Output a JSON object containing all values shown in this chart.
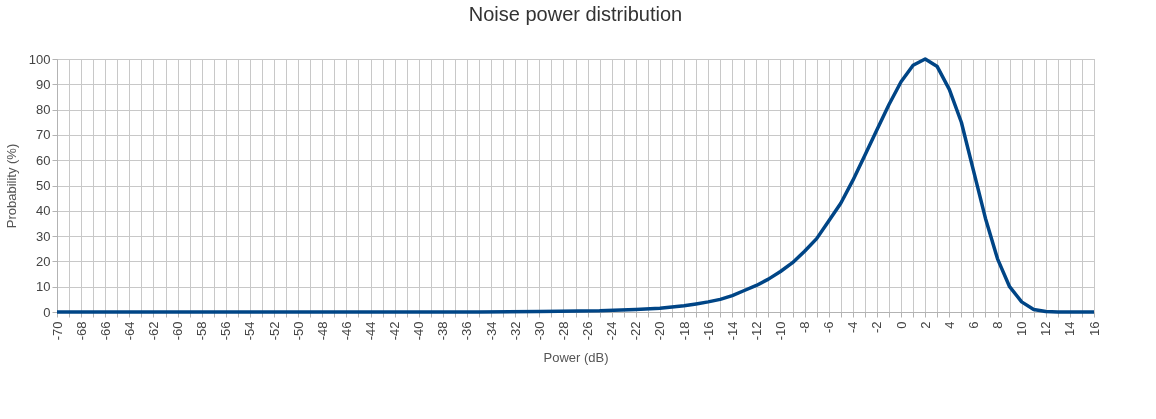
{
  "chart_data": {
    "type": "line",
    "title": "Noise power distribution",
    "xlabel": "Power (dB)",
    "ylabel": "Probability (%)",
    "x": [
      -70,
      -60,
      -50,
      -40,
      -35,
      -30,
      -25,
      -22,
      -20,
      -19,
      -18,
      -17,
      -16,
      -15,
      -14,
      -13,
      -12,
      -11,
      -10,
      -9,
      -8,
      -7,
      -6,
      -5,
      -4,
      -3,
      -2,
      -1,
      0,
      1,
      2,
      3,
      4,
      5,
      6,
      7,
      8,
      9,
      10,
      11,
      12,
      13,
      14,
      15,
      16
    ],
    "series": [
      {
        "color": "#004586",
        "values": [
          0,
          0,
          0,
          0,
          0,
          0.2,
          0.5,
          1,
          1.5,
          2,
          2.5,
          3.2,
          4,
          5,
          6.5,
          8.5,
          10.5,
          13,
          16,
          19.5,
          24,
          29,
          36,
          43,
          52,
          62,
          72,
          82,
          91,
          97.5,
          100,
          97,
          88,
          75,
          56,
          37,
          21,
          10,
          4,
          1,
          0.2,
          0,
          0,
          0,
          0
        ]
      }
    ],
    "xlim": [
      -70,
      16
    ],
    "ylim": [
      0,
      100
    ],
    "xticks": [
      -70,
      {
        "value": -69,
        "label": null
      },
      -68,
      {
        "value": -67,
        "label": null
      },
      -66,
      {
        "value": -65,
        "label": null
      },
      -64,
      {
        "value": -63,
        "label": null
      },
      -62,
      {
        "value": -61,
        "label": null
      },
      -60,
      {
        "value": -59,
        "label": null
      },
      -58,
      {
        "value": -57,
        "label": null
      },
      -56,
      {
        "value": -55,
        "label": null
      },
      -54,
      {
        "value": -53,
        "label": null
      },
      -52,
      {
        "value": -51,
        "label": null
      },
      -50,
      {
        "value": -49,
        "label": null
      },
      -48,
      {
        "value": -47,
        "label": null
      },
      -46,
      {
        "value": -45,
        "label": null
      },
      -44,
      {
        "value": -43,
        "label": null
      },
      -42,
      {
        "value": -41,
        "label": null
      },
      -40,
      {
        "value": -39,
        "label": null
      },
      -38,
      {
        "value": -37,
        "label": null
      },
      -36,
      {
        "value": -35,
        "label": null
      },
      -34,
      {
        "value": -33,
        "label": null
      },
      -32,
      {
        "value": -31,
        "label": null
      },
      -30,
      {
        "value": -29,
        "label": null
      },
      -28,
      {
        "value": -27,
        "label": null
      },
      -26,
      {
        "value": -25,
        "label": null
      },
      -24,
      {
        "value": -23,
        "label": null
      },
      -22,
      {
        "value": -21,
        "label": null
      },
      -20,
      {
        "value": -19,
        "label": null
      },
      -18,
      {
        "value": -17,
        "label": null
      },
      -16,
      {
        "value": -15,
        "label": null
      },
      -14,
      {
        "value": -13,
        "label": null
      },
      -12,
      {
        "value": -11,
        "label": null
      },
      -10,
      {
        "value": -9,
        "label": null
      },
      -8,
      {
        "value": -7,
        "label": null
      },
      -6,
      {
        "value": -5,
        "label": null
      },
      -4,
      {
        "value": -3,
        "label": null
      },
      -2,
      {
        "value": -1,
        "label": null
      },
      0,
      {
        "value": 1,
        "label": null
      },
      2,
      {
        "value": 3,
        "label": null
      },
      4,
      {
        "value": 5,
        "label": null
      },
      6,
      {
        "value": 7,
        "label": null
      },
      8,
      {
        "value": 9,
        "label": null
      },
      10,
      {
        "value": 11,
        "label": null
      },
      12,
      {
        "value": 13,
        "label": null
      },
      14,
      {
        "value": 15,
        "label": null
      },
      16
    ],
    "yticks": [
      0,
      10,
      20,
      30,
      40,
      50,
      60,
      70,
      80,
      90,
      100
    ],
    "grid": true,
    "legend": false,
    "marker": "none",
    "line_style": "solid"
  }
}
